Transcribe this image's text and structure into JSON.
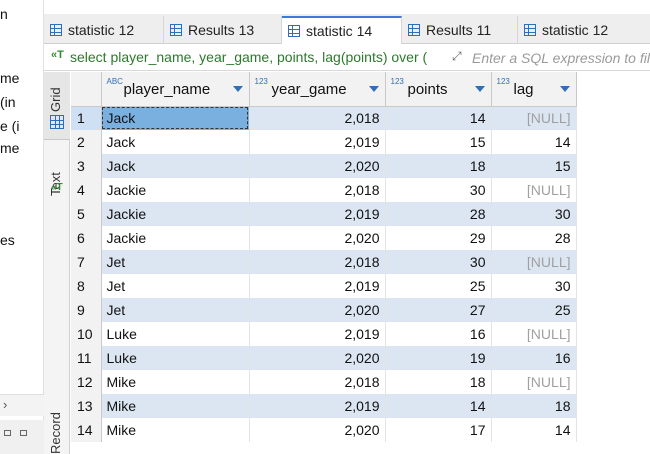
{
  "navigator": {
    "fragments": [
      "n",
      "me",
      "(in",
      "e (i",
      "me",
      "es"
    ]
  },
  "tabs": [
    {
      "label": "statistic 12"
    },
    {
      "label": "Results 13"
    },
    {
      "label": "statistic 14"
    },
    {
      "label": "Results 11"
    },
    {
      "label": "statistic 12"
    }
  ],
  "filter": {
    "sql": "select player_name, year_game, points, lag(points) over (",
    "placeholder": "Enter a SQL expression to filt"
  },
  "panels": {
    "grid": "Grid",
    "text": "Text",
    "record": "Record"
  },
  "columns": [
    {
      "name": "player_name",
      "type_icon": "ABC"
    },
    {
      "name": "year_game",
      "type_icon": "123"
    },
    {
      "name": "points",
      "type_icon": "123"
    },
    {
      "name": "lag",
      "type_icon": "123"
    }
  ],
  "rows": [
    {
      "n": "1",
      "player_name": "Jack",
      "year_game": "2,018",
      "points": "14",
      "lag": "[NULL]"
    },
    {
      "n": "2",
      "player_name": "Jack",
      "year_game": "2,019",
      "points": "15",
      "lag": "14"
    },
    {
      "n": "3",
      "player_name": "Jack",
      "year_game": "2,020",
      "points": "18",
      "lag": "15"
    },
    {
      "n": "4",
      "player_name": "Jackie",
      "year_game": "2,018",
      "points": "30",
      "lag": "[NULL]"
    },
    {
      "n": "5",
      "player_name": "Jackie",
      "year_game": "2,019",
      "points": "28",
      "lag": "30"
    },
    {
      "n": "6",
      "player_name": "Jackie",
      "year_game": "2,020",
      "points": "29",
      "lag": "28"
    },
    {
      "n": "7",
      "player_name": "Jet",
      "year_game": "2,018",
      "points": "30",
      "lag": "[NULL]"
    },
    {
      "n": "8",
      "player_name": "Jet",
      "year_game": "2,019",
      "points": "25",
      "lag": "30"
    },
    {
      "n": "9",
      "player_name": "Jet",
      "year_game": "2,020",
      "points": "27",
      "lag": "25"
    },
    {
      "n": "10",
      "player_name": "Luke",
      "year_game": "2,019",
      "points": "16",
      "lag": "[NULL]"
    },
    {
      "n": "11",
      "player_name": "Luke",
      "year_game": "2,020",
      "points": "19",
      "lag": "16"
    },
    {
      "n": "12",
      "player_name": "Mike",
      "year_game": "2,018",
      "points": "18",
      "lag": "[NULL]"
    },
    {
      "n": "13",
      "player_name": "Mike",
      "year_game": "2,019",
      "points": "14",
      "lag": "18"
    },
    {
      "n": "14",
      "player_name": "Mike",
      "year_game": "2,020",
      "points": "17",
      "lag": "14"
    }
  ],
  "colors": {
    "accent": "#3b7bd6",
    "row_alt": "#dce6f2",
    "selected_cell": "#7ab0e0",
    "sql_text": "#2b7a2b"
  }
}
